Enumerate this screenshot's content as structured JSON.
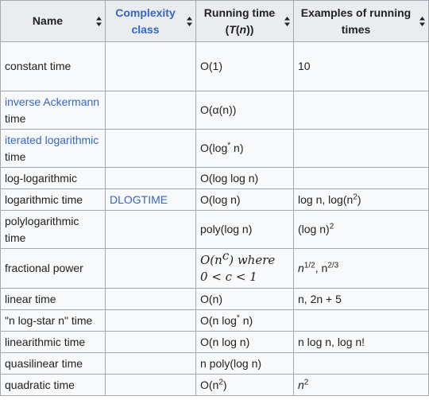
{
  "headers": {
    "name": "Name",
    "complexity_class": "Complexity class",
    "running_time_prefix": "Running time (",
    "running_time_T": "T",
    "running_time_paren": "(",
    "running_time_n": "n",
    "running_time_suffix": "))",
    "examples": "Examples of running times"
  },
  "icons": {
    "sort": "sort-icon"
  },
  "colors": {
    "link": "#3366cc",
    "header_bg": "#eaecf0",
    "cell_bg": "#f8f9fa",
    "border": "#a2a9b1"
  },
  "rows": [
    {
      "name": "constant time",
      "class": "",
      "time": "O(1)",
      "example": "10"
    },
    {
      "name_link": "inverse Ackermann",
      "name_rest": " time",
      "class": "",
      "time": "O(α(n))",
      "example": ""
    },
    {
      "name_link": "iterated logarithmic",
      "name_rest": " time",
      "class": "",
      "time_a": "O(log",
      "time_sup": "*",
      "time_b": " n)",
      "example": ""
    },
    {
      "name": "log-logarithmic",
      "class": "",
      "time": "O(log log n)",
      "example": ""
    },
    {
      "name": "logarithmic time",
      "class": "DLOGTIME",
      "time": "O(log n)",
      "ex_a": "log n, log(n",
      "ex_sup": "2",
      "ex_b": ")"
    },
    {
      "name": "polylogarithmic time",
      "class": "",
      "time": "poly(log n)",
      "ex_a": "(log n)",
      "ex_sup": "2",
      "ex_b": ""
    },
    {
      "name": "fractional power",
      "class": "",
      "time_a": "O(n",
      "time_sup": "c",
      "time_b": ") where",
      "time_line2": "0 < c < 1",
      "ex_a": "n",
      "ex_sup": "1/2",
      "ex_b": ", n",
      "ex_sup2": "2/3"
    },
    {
      "name": "linear time",
      "class": "",
      "time": "O(n)",
      "example": "n, 2n + 5"
    },
    {
      "name": "\"n log-star n\" time",
      "class": "",
      "time_a": "O(n log",
      "time_sup": "*",
      "time_b": " n)",
      "example": ""
    },
    {
      "name": "linearithmic time",
      "class": "",
      "time": "O(n log n)",
      "example": "n log n, log n!"
    },
    {
      "name": "quasilinear time",
      "class": "",
      "time": "n poly(log n)",
      "example": ""
    },
    {
      "name": "quadratic time",
      "class": "",
      "time_a": "O(n",
      "time_sup": "2",
      "time_b": ")",
      "ex_a": "n",
      "ex_sup": "2",
      "ex_b": ""
    }
  ]
}
